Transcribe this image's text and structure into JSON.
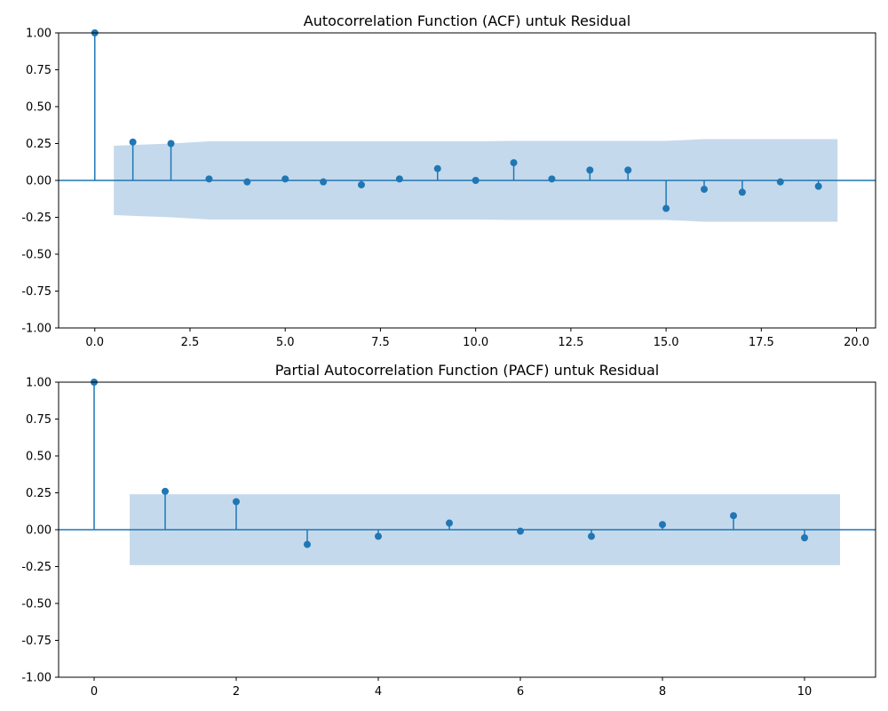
{
  "chart_data": [
    {
      "type": "scatter",
      "subtype": "stem",
      "title": "Autocorrelation Function (ACF) untuk Residual",
      "xlabel": "",
      "ylabel": "",
      "xlim": [
        -0.95,
        20.5
      ],
      "ylim": [
        -1.0,
        1.0
      ],
      "xticks": [
        "0.0",
        "2.5",
        "5.0",
        "7.5",
        "10.0",
        "12.5",
        "15.0",
        "17.5",
        "20.0"
      ],
      "yticks": [
        "-1.00",
        "-0.75",
        "-0.50",
        "-0.25",
        "0.00",
        "0.25",
        "0.50",
        "0.75",
        "1.00"
      ],
      "x": [
        0,
        1,
        2,
        3,
        4,
        5,
        6,
        7,
        8,
        9,
        10,
        11,
        12,
        13,
        14,
        15,
        16,
        17,
        18,
        19
      ],
      "values": [
        1.0,
        0.26,
        0.25,
        0.01,
        -0.01,
        0.01,
        -0.01,
        -0.03,
        0.01,
        0.08,
        0.0,
        0.12,
        0.01,
        0.07,
        0.07,
        -0.19,
        -0.06,
        -0.08,
        -0.01,
        -0.04
      ],
      "confidence_band": {
        "x": [
          0.5,
          1,
          2,
          3,
          4,
          5,
          6,
          7,
          8,
          9,
          10,
          11,
          12,
          13,
          14,
          15,
          16,
          17,
          18,
          19,
          19.5
        ],
        "upper": [
          0.235,
          0.24,
          0.25,
          0.265,
          0.265,
          0.265,
          0.265,
          0.265,
          0.265,
          0.265,
          0.265,
          0.268,
          0.268,
          0.268,
          0.268,
          0.268,
          0.28,
          0.28,
          0.28,
          0.28,
          0.28
        ]
      },
      "grid": false,
      "color": "#1f77b4",
      "band_color": "#c5d9ec"
    },
    {
      "type": "scatter",
      "subtype": "stem",
      "title": "Partial Autocorrelation Function (PACF) untuk Residual",
      "xlabel": "",
      "ylabel": "",
      "xlim": [
        -0.5,
        11.0
      ],
      "ylim": [
        -1.0,
        1.0
      ],
      "xticks": [
        "0",
        "2",
        "4",
        "6",
        "8",
        "10"
      ],
      "yticks": [
        "-1.00",
        "-0.75",
        "-0.50",
        "-0.25",
        "0.00",
        "0.25",
        "0.50",
        "0.75",
        "1.00"
      ],
      "x": [
        0,
        1,
        2,
        3,
        4,
        5,
        6,
        7,
        8,
        9,
        10
      ],
      "values": [
        1.0,
        0.26,
        0.19,
        -0.1,
        -0.045,
        0.045,
        -0.01,
        -0.045,
        0.035,
        0.095,
        -0.055
      ],
      "confidence_band": {
        "x": [
          0.5,
          10.5
        ],
        "upper": [
          0.24,
          0.24
        ]
      },
      "grid": false,
      "color": "#1f77b4",
      "band_color": "#c5d9ec"
    }
  ]
}
